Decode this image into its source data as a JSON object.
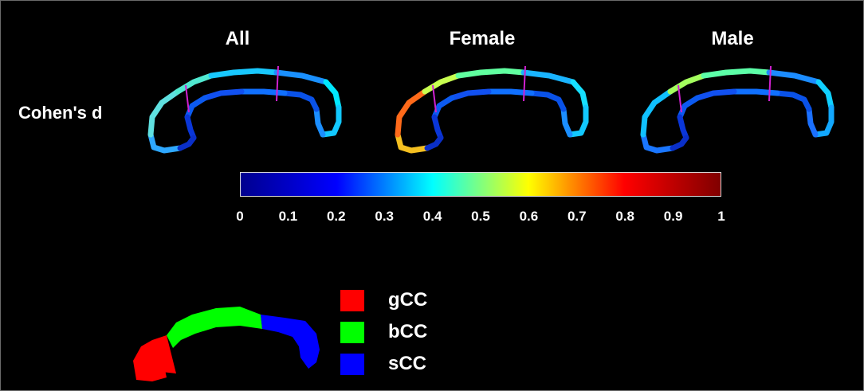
{
  "panels": [
    {
      "title": "All",
      "colors": [
        "#2ea8ff",
        "#5fe0e0",
        "#50e8d0",
        "#18c8ff",
        "#1a90ff",
        "#00e8ff",
        "#12c8ff",
        "#1b8eff",
        "#0a52e8",
        "#1070ff",
        "#1150f0",
        "#0c5af0",
        "#0a36d8",
        "#0a2fc8"
      ]
    },
    {
      "title": "Female",
      "colors": [
        "#f5c020",
        "#ff6a1a",
        "#c8ff50",
        "#60ffa0",
        "#1ab4ff",
        "#16e0ff",
        "#12c8ff",
        "#1b8eff",
        "#0a52e8",
        "#1070ff",
        "#1150f0",
        "#0c5af0",
        "#0a36d8",
        "#0a2fc8"
      ]
    },
    {
      "title": "Male",
      "colors": [
        "#1a76ff",
        "#10c0ff",
        "#a4ff5e",
        "#5cffa8",
        "#1c8cff",
        "#10d0ff",
        "#12a8ff",
        "#1b70ff",
        "#0a52e8",
        "#1070ff",
        "#1150f0",
        "#0c5af0",
        "#0a36d8",
        "#0a2fc8"
      ]
    }
  ],
  "row_label": "Cohen's d",
  "colorbar": {
    "min": 0,
    "max": 1,
    "ticks": [
      "0",
      "0.1",
      "0.2",
      "0.3",
      "0.4",
      "0.5",
      "0.6",
      "0.7",
      "0.8",
      "0.9",
      "1"
    ],
    "colors": [
      "#00008f",
      "#0000ff",
      "#00ffff",
      "#ffff00",
      "#ff0000",
      "#800000"
    ]
  },
  "divider_color": "#d020d0",
  "legend": [
    {
      "label": "gCC",
      "color": "#ff0000"
    },
    {
      "label": "bCC",
      "color": "#00ff00"
    },
    {
      "label": "sCC",
      "color": "#0000ff"
    }
  ]
}
